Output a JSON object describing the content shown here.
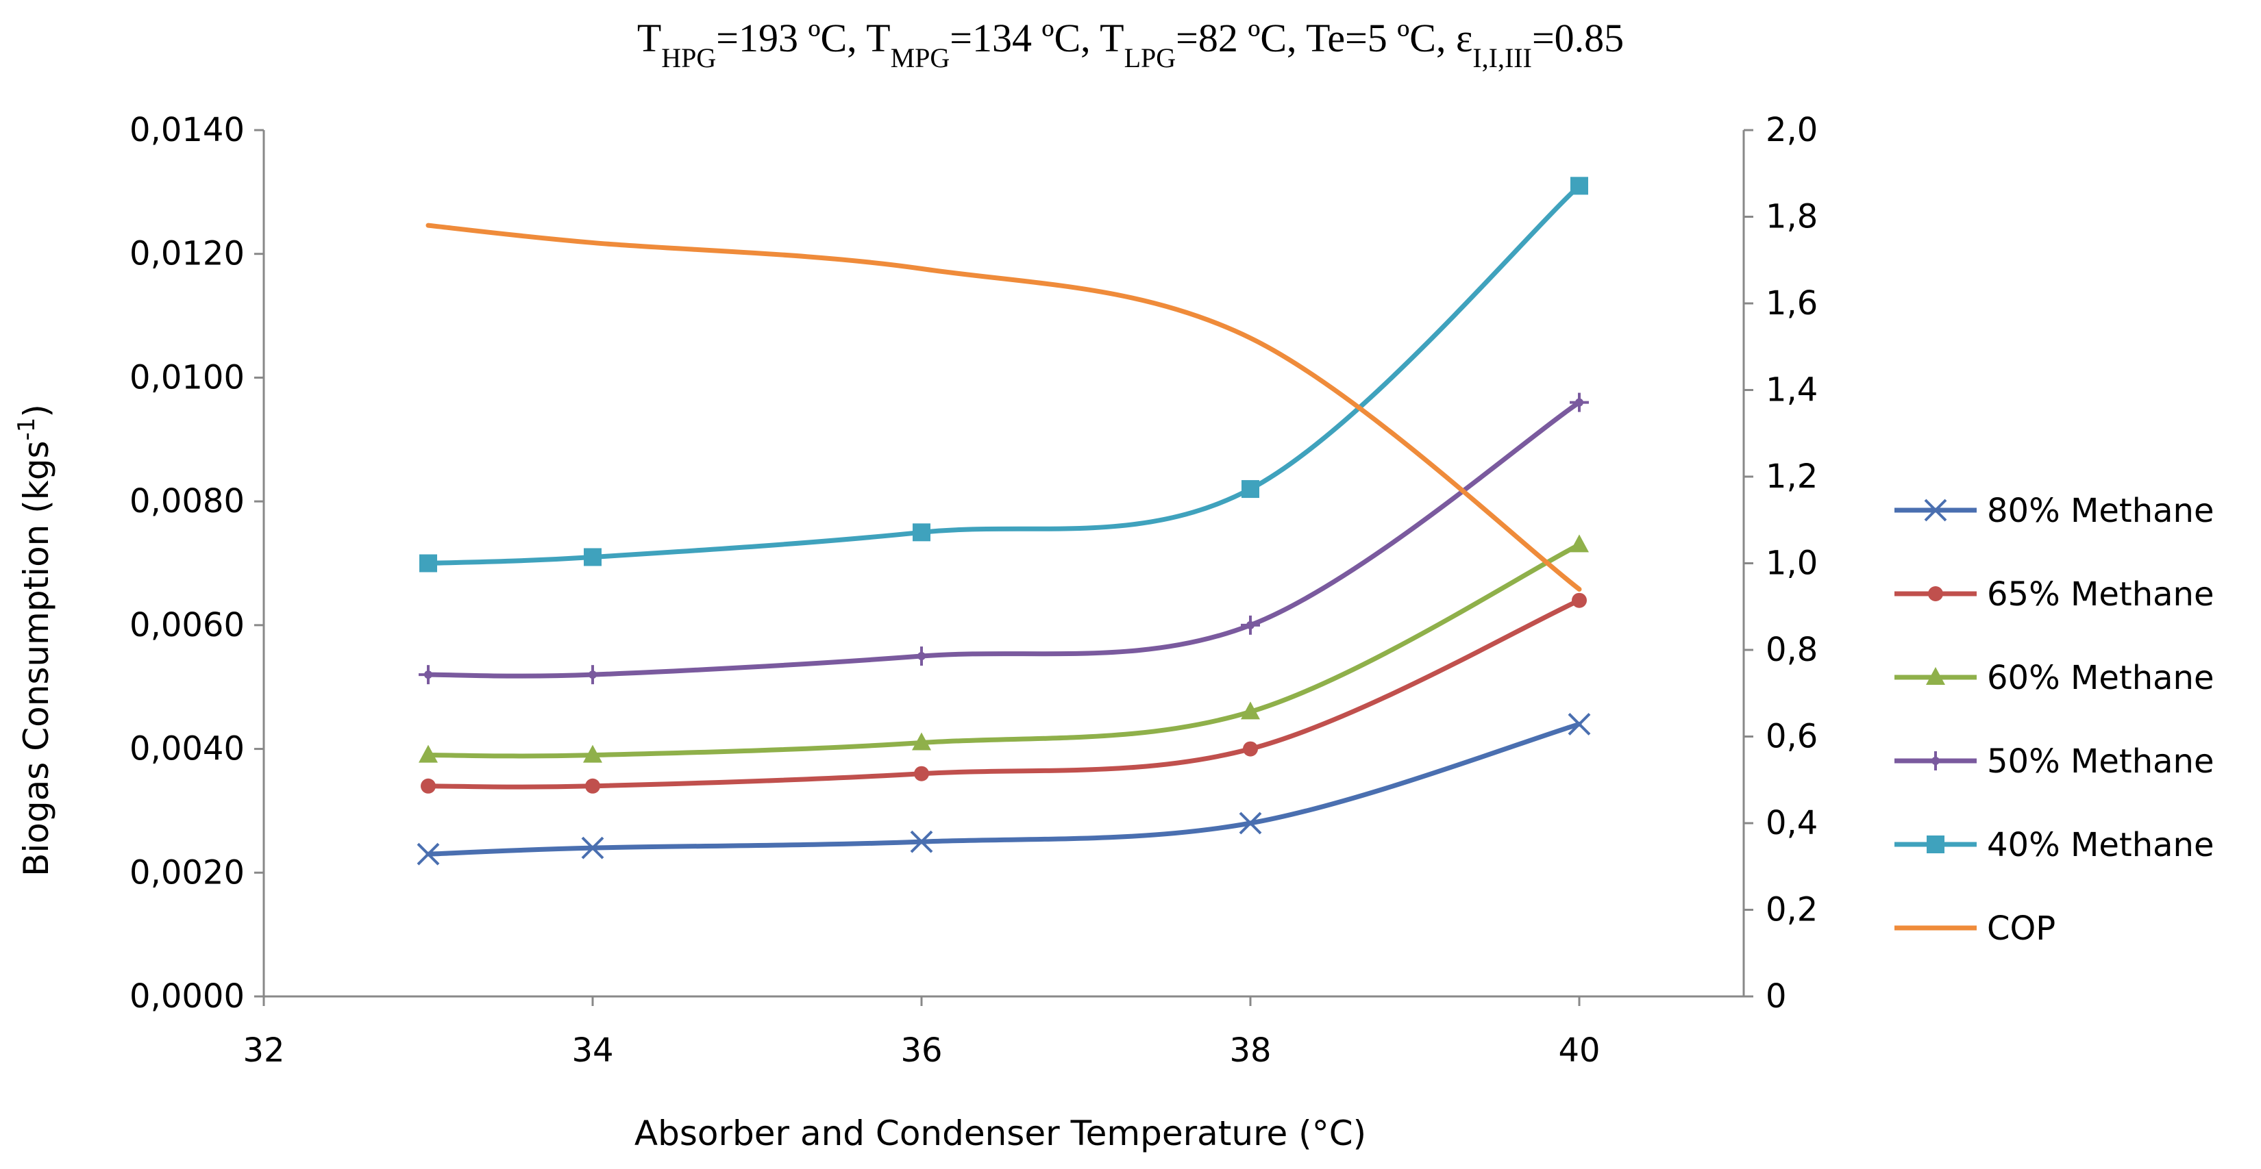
{
  "chart_data": {
    "type": "line",
    "title": {
      "segments": [
        {
          "text": "T",
          "sub": "HPG",
          "rest": "=193 ºC, "
        },
        {
          "text": "T",
          "sub": "MPG",
          "rest": "=134 ºC, "
        },
        {
          "text": "T",
          "sub": "LPG",
          "rest": "=82 ºC, Te=5 ºC, "
        },
        {
          "text": "ε",
          "sub": "I,I,III",
          "rest": "=0.85"
        }
      ]
    },
    "xlabel": "Absorber and  Condenser Temperature (°C)",
    "ylabel": "Biogas Consumption (kgs",
    "ylabel_sup": "-1",
    "ylabel_close": ")",
    "x_ticks": [
      "32",
      "34",
      "36",
      "38",
      "40"
    ],
    "y_left_ticks": [
      "0,0000",
      "0,0020",
      "0,0040",
      "0,0060",
      "0,0080",
      "0,0100",
      "0,0120",
      "0,0140"
    ],
    "y_right_ticks": [
      "0",
      "0,2",
      "0,4",
      "0,6",
      "0,8",
      "1,0",
      "1,2",
      "1,4",
      "1,6",
      "1,8",
      "2,0"
    ],
    "xlim": [
      32,
      41
    ],
    "ylim_left": [
      0,
      0.014
    ],
    "ylim_right": [
      0,
      2.0
    ],
    "x": [
      33,
      34,
      36,
      38,
      40
    ],
    "series": [
      {
        "name": "80% Methane",
        "axis": "left",
        "color": "#4a6fb0",
        "marker": "x",
        "values": [
          0.0023,
          0.0024,
          0.0025,
          0.0028,
          0.0044
        ]
      },
      {
        "name": "65% Methane",
        "axis": "left",
        "color": "#c0504d",
        "marker": "circle",
        "values": [
          0.0034,
          0.0034,
          0.0036,
          0.004,
          0.0064
        ]
      },
      {
        "name": "60% Methane",
        "axis": "left",
        "color": "#8fb04a",
        "marker": "triangle",
        "values": [
          0.0039,
          0.0039,
          0.0041,
          0.0046,
          0.0073
        ]
      },
      {
        "name": "50% Methane",
        "axis": "left",
        "color": "#7a5a9e",
        "marker": "star",
        "values": [
          0.0052,
          0.0052,
          0.0055,
          0.006,
          0.0096
        ]
      },
      {
        "name": "40% Methane",
        "axis": "left",
        "color": "#3fa2bd",
        "marker": "square",
        "values": [
          0.007,
          0.0071,
          0.0075,
          0.0082,
          0.0131
        ]
      },
      {
        "name": "COP",
        "axis": "right",
        "color": "#ef8b3a",
        "marker": "none",
        "values": [
          1.78,
          1.74,
          1.68,
          1.52,
          0.94
        ]
      }
    ]
  }
}
